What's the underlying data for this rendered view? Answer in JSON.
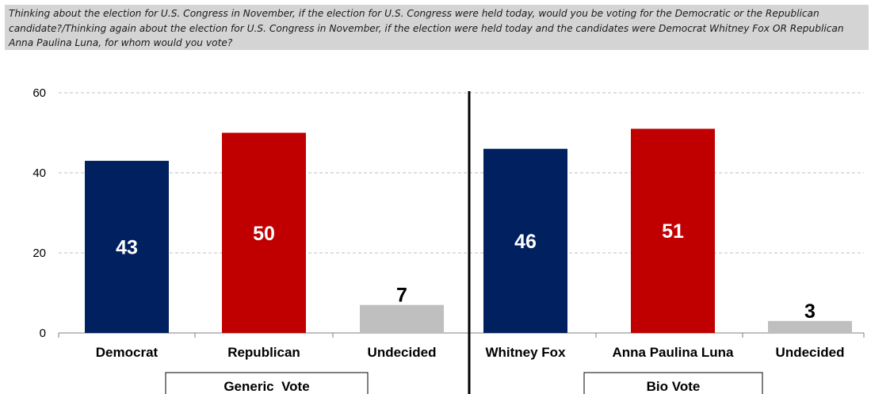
{
  "question": "Thinking about the election for U.S. Congress in November, if the election for U.S. Congress were held today, would you be voting for the Democratic or the Republican candidate?/Thinking again about the election for U.S. Congress in November, if the election were held today and the candidates were Democrat Whitney Fox OR Republican Anna Paulina Luna, for whom would you vote?",
  "colors": {
    "democrat": "#002060",
    "republican": "#c00000",
    "undecided": "#bfbfbf",
    "gridline": "#bfbfbf",
    "banner": "#d4d4d4"
  },
  "chart_data": {
    "type": "bar",
    "ylim": [
      0,
      60
    ],
    "yticks": [
      0,
      20,
      40,
      60
    ],
    "grid": true,
    "groups": [
      {
        "label": "Generic  Vote",
        "bars": [
          {
            "label": "Democrat",
            "value": 43,
            "color_key": "democrat"
          },
          {
            "label": "Republican",
            "value": 50,
            "color_key": "republican"
          },
          {
            "label": "Undecided",
            "value": 7,
            "color_key": "undecided"
          }
        ]
      },
      {
        "label": "Bio Vote",
        "bars": [
          {
            "label": "Whitney Fox",
            "value": 46,
            "color_key": "democrat"
          },
          {
            "label": "Anna Paulina Luna",
            "value": 51,
            "color_key": "republican"
          },
          {
            "label": "Undecided",
            "value": 3,
            "color_key": "undecided"
          }
        ]
      }
    ]
  }
}
